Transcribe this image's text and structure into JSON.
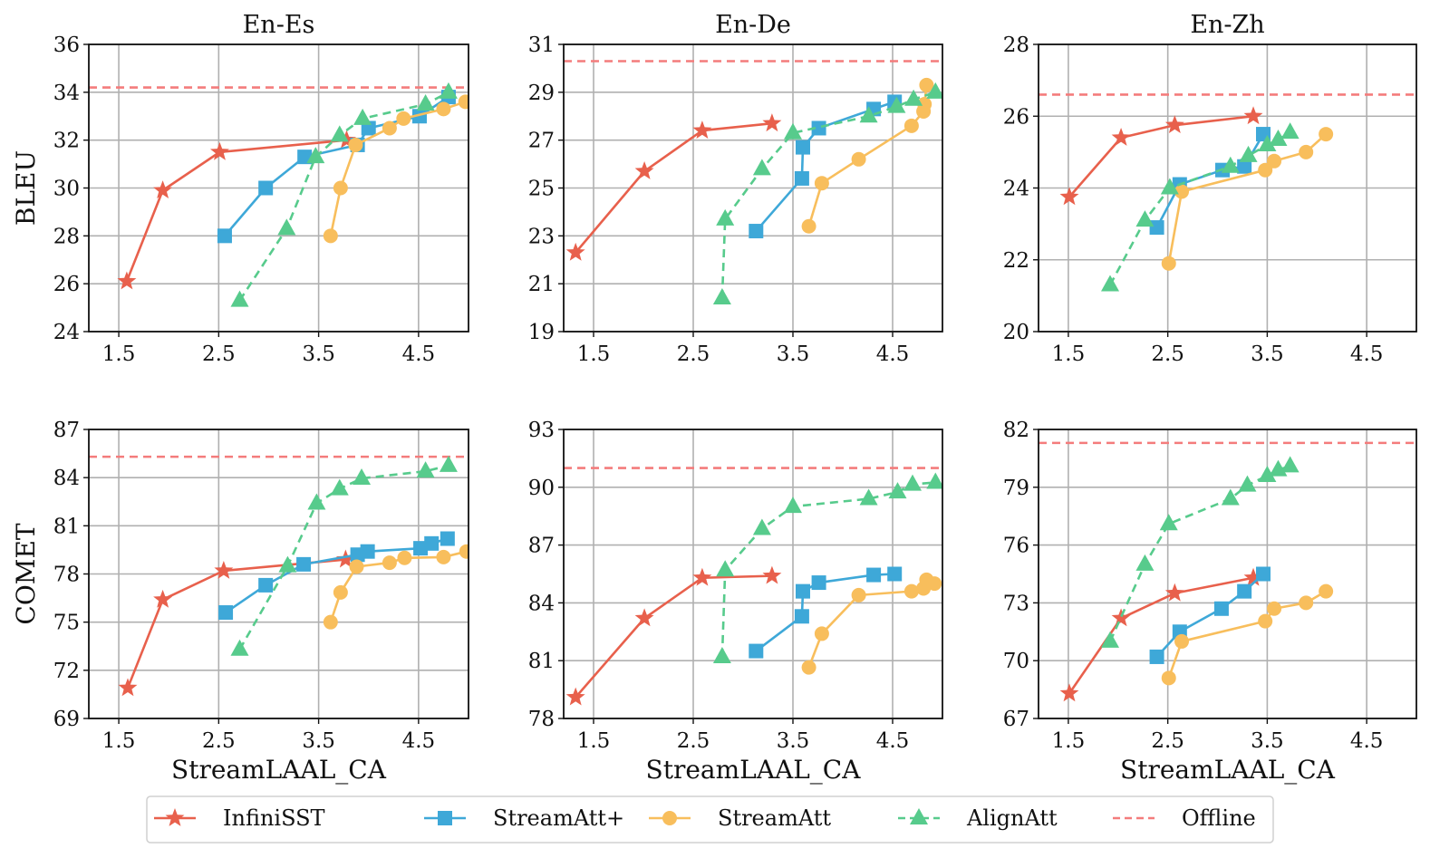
{
  "chart_data": {
    "type": "line",
    "legend": {
      "placement": "bottom-center",
      "entries": [
        {
          "name": "InfiniSST",
          "color": "#e8604c",
          "marker": "star",
          "linestyle": "solid"
        },
        {
          "name": "StreamAtt+",
          "color": "#3ea8d8",
          "marker": "square",
          "linestyle": "solid"
        },
        {
          "name": "StreamAtt",
          "color": "#f8be5c",
          "marker": "circle",
          "linestyle": "solid"
        },
        {
          "name": "AlignAtt",
          "color": "#57cb8c",
          "marker": "triangle",
          "linestyle": "dashed"
        },
        {
          "name": "Offline",
          "color": "#f47c7c",
          "marker": "none",
          "linestyle": "dashed"
        }
      ]
    },
    "columns": [
      "En-Es",
      "En-De",
      "En-Zh"
    ],
    "rows": [
      "BLEU",
      "COMET"
    ],
    "xlabel": "StreamLAAL_CA",
    "xlim": [
      1.2,
      5.0
    ],
    "xticks": [
      1.5,
      2.5,
      3.5,
      4.5
    ],
    "xtick_labels": [
      "1.5",
      "2.5",
      "3.5",
      "4.5"
    ],
    "grid": true,
    "panels": [
      {
        "title": "En-Es",
        "ylabel": "BLEU",
        "ylim": [
          24,
          36
        ],
        "yticks": [
          24,
          26,
          28,
          30,
          32,
          34,
          36
        ],
        "offline": 34.2,
        "series": [
          {
            "name": "InfiniSST",
            "x": [
              1.58,
              1.94,
              2.51,
              3.78
            ],
            "y": [
              26.1,
              29.9,
              31.5,
              32.0
            ]
          },
          {
            "name": "StreamAtt+",
            "x": [
              2.56,
              2.97,
              3.36,
              3.89,
              4.0,
              4.51,
              4.8
            ],
            "y": [
              28.0,
              30.0,
              31.3,
              31.8,
              32.5,
              33.0,
              33.8
            ]
          },
          {
            "name": "StreamAtt",
            "x": [
              3.62,
              3.72,
              3.87,
              4.21,
              4.35,
              4.75,
              4.97
            ],
            "y": [
              28.0,
              30.0,
              31.8,
              32.5,
              32.9,
              33.3,
              33.6
            ]
          },
          {
            "name": "AlignAtt",
            "x": [
              2.71,
              3.18,
              3.47,
              3.71,
              3.94,
              4.57,
              4.8
            ],
            "y": [
              25.3,
              28.3,
              31.3,
              32.2,
              32.9,
              33.5,
              34.0
            ]
          }
        ]
      },
      {
        "title": "En-De",
        "ylabel": "",
        "ylim": [
          19,
          31
        ],
        "yticks": [
          19,
          21,
          23,
          25,
          27,
          29,
          31
        ],
        "offline": 30.3,
        "series": [
          {
            "name": "InfiniSST",
            "x": [
              1.32,
              2.01,
              2.59,
              3.29
            ],
            "y": [
              22.3,
              25.7,
              27.4,
              27.7
            ]
          },
          {
            "name": "StreamAtt+",
            "x": [
              3.13,
              3.59,
              3.6,
              3.76,
              4.31,
              4.52
            ],
            "y": [
              23.2,
              25.4,
              26.7,
              27.5,
              28.3,
              28.6
            ]
          },
          {
            "name": "StreamAtt",
            "x": [
              3.66,
              3.79,
              4.16,
              4.69,
              4.81,
              4.82,
              4.84
            ],
            "y": [
              23.4,
              25.2,
              26.2,
              27.6,
              28.2,
              28.5,
              29.3
            ]
          },
          {
            "name": "AlignAtt",
            "x": [
              2.79,
              2.82,
              3.19,
              3.5,
              4.26,
              4.54,
              4.71,
              4.93
            ],
            "y": [
              20.4,
              23.7,
              25.8,
              27.3,
              28.0,
              28.4,
              28.7,
              29.0
            ]
          }
        ]
      },
      {
        "title": "En-Zh",
        "ylabel": "",
        "ylim": [
          20,
          28
        ],
        "yticks": [
          20,
          22,
          24,
          26,
          28
        ],
        "offline": 26.6,
        "series": [
          {
            "name": "InfiniSST",
            "x": [
              1.51,
              2.03,
              2.57,
              3.36
            ],
            "y": [
              23.75,
              25.4,
              25.75,
              26.0
            ]
          },
          {
            "name": "StreamAtt+",
            "x": [
              2.39,
              2.62,
              3.05,
              3.27,
              3.46
            ],
            "y": [
              22.9,
              24.1,
              24.5,
              24.6,
              25.5
            ]
          },
          {
            "name": "StreamAtt",
            "x": [
              2.51,
              2.64,
              3.48,
              3.57,
              3.89,
              4.09
            ],
            "y": [
              21.9,
              23.9,
              24.5,
              24.75,
              25.0,
              25.5
            ]
          },
          {
            "name": "AlignAtt",
            "x": [
              1.92,
              2.27,
              2.52,
              3.13,
              3.31,
              3.5,
              3.61,
              3.73
            ],
            "y": [
              21.3,
              23.1,
              24.0,
              24.6,
              24.9,
              25.2,
              25.35,
              25.55
            ]
          }
        ]
      },
      {
        "title": "",
        "ylabel": "COMET",
        "ylim": [
          69,
          87
        ],
        "yticks": [
          69,
          72,
          75,
          78,
          81,
          84,
          87
        ],
        "offline": 85.3,
        "series": [
          {
            "name": "InfiniSST",
            "x": [
              1.59,
              1.94,
              2.55,
              3.77
            ],
            "y": [
              70.9,
              76.4,
              78.2,
              78.9
            ]
          },
          {
            "name": "StreamAtt+",
            "x": [
              2.57,
              2.97,
              3.35,
              3.89,
              3.99,
              4.52,
              4.63,
              4.79
            ],
            "y": [
              75.6,
              77.3,
              78.6,
              79.2,
              79.4,
              79.6,
              79.9,
              80.2
            ]
          },
          {
            "name": "StreamAtt",
            "x": [
              3.62,
              3.72,
              3.88,
              4.21,
              4.36,
              4.75,
              4.98
            ],
            "y": [
              75.0,
              76.85,
              78.45,
              78.7,
              79.0,
              79.05,
              79.4
            ]
          },
          {
            "name": "AlignAtt",
            "x": [
              2.71,
              3.19,
              3.48,
              3.71,
              3.93,
              4.57,
              4.8
            ],
            "y": [
              73.3,
              78.5,
              82.4,
              83.3,
              83.95,
              84.4,
              84.75
            ]
          }
        ]
      },
      {
        "title": "",
        "ylabel": "",
        "ylim": [
          78,
          93
        ],
        "yticks": [
          78,
          81,
          84,
          87,
          90,
          93
        ],
        "offline": 91.0,
        "series": [
          {
            "name": "InfiniSST",
            "x": [
              1.32,
              2.01,
              2.59,
              3.29
            ],
            "y": [
              79.1,
              83.2,
              85.3,
              85.4
            ]
          },
          {
            "name": "StreamAtt+",
            "x": [
              3.13,
              3.59,
              3.6,
              3.76,
              4.31,
              4.52
            ],
            "y": [
              81.5,
              83.3,
              84.6,
              85.05,
              85.45,
              85.5
            ]
          },
          {
            "name": "StreamAtt",
            "x": [
              3.66,
              3.79,
              4.16,
              4.69,
              4.81,
              4.84,
              4.92
            ],
            "y": [
              80.65,
              82.4,
              84.4,
              84.6,
              84.75,
              85.2,
              85.0
            ]
          },
          {
            "name": "AlignAtt",
            "x": [
              2.79,
              2.82,
              3.19,
              3.5,
              4.26,
              4.55,
              4.7,
              4.93
            ],
            "y": [
              81.2,
              85.7,
              87.85,
              89.0,
              89.4,
              89.75,
              90.15,
              90.25
            ]
          }
        ]
      },
      {
        "title": "",
        "ylabel": "",
        "ylim": [
          67,
          82
        ],
        "yticks": [
          67,
          70,
          73,
          76,
          79,
          82
        ],
        "offline": 81.3,
        "series": [
          {
            "name": "InfiniSST",
            "x": [
              1.51,
              2.03,
              2.57,
              3.36
            ],
            "y": [
              68.3,
              72.2,
              73.5,
              74.3
            ]
          },
          {
            "name": "StreamAtt+",
            "x": [
              2.39,
              2.62,
              3.04,
              3.27,
              3.46
            ],
            "y": [
              70.2,
              71.5,
              72.7,
              73.6,
              74.5
            ]
          },
          {
            "name": "StreamAtt",
            "x": [
              2.51,
              2.64,
              3.48,
              3.57,
              3.89,
              4.09
            ],
            "y": [
              69.1,
              71.0,
              72.05,
              72.7,
              73.0,
              73.6
            ]
          },
          {
            "name": "AlignAtt",
            "x": [
              1.92,
              2.27,
              2.51,
              3.13,
              3.3,
              3.5,
              3.61,
              3.73
            ],
            "y": [
              71.0,
              75.0,
              77.1,
              78.4,
              79.1,
              79.6,
              79.9,
              80.1
            ]
          }
        ]
      }
    ]
  }
}
